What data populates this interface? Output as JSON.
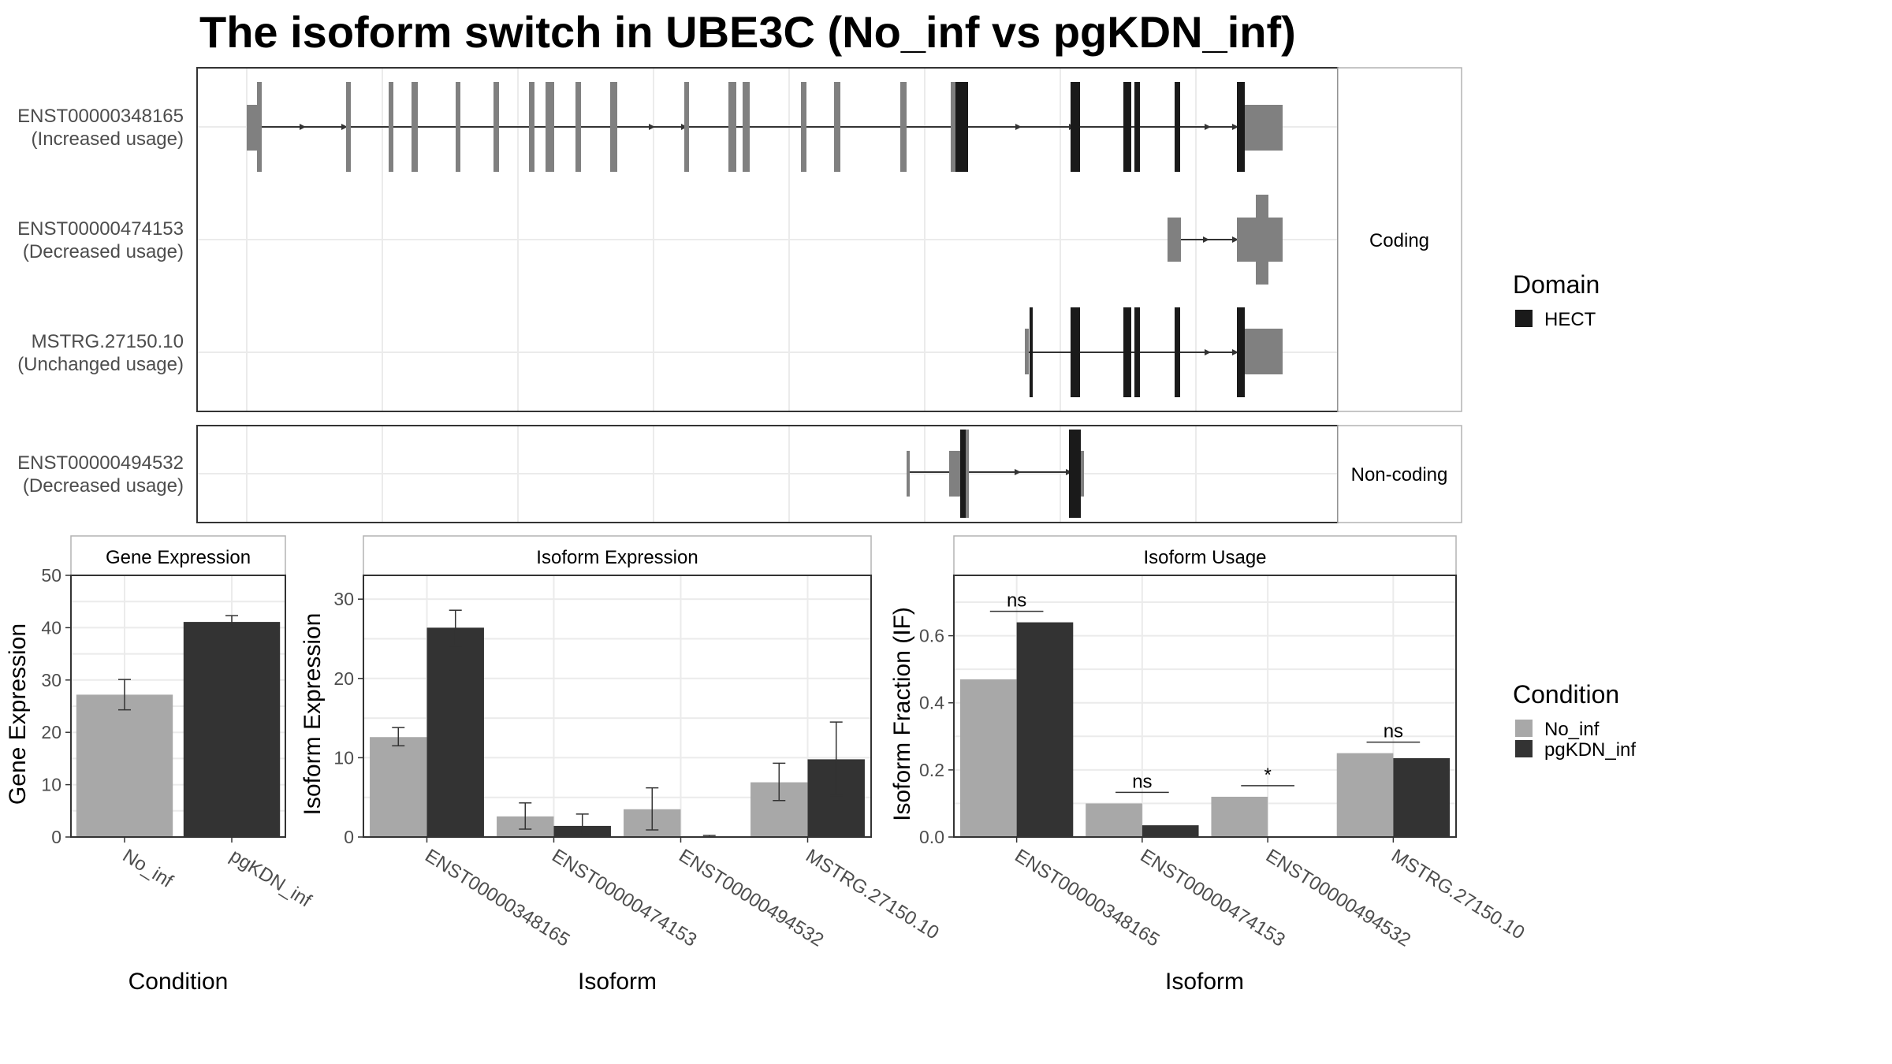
{
  "title": "The isoform switch in UBE3C (No_inf vs pgKDN_inf)",
  "colors": {
    "no_inf": "#a8a8a8",
    "pgkdn_inf": "#333333",
    "exon": "#808080",
    "domain": "#1a1a1a",
    "grid": "#ebebeb",
    "panel_border": "#333333",
    "strip_border": "#b3b3b3"
  },
  "transcript_plot": {
    "facets": [
      {
        "label": "Coding",
        "isoforms": [
          {
            "id": "ENST00000348165",
            "usage": "(Increased usage)"
          },
          {
            "id": "ENST00000474153",
            "usage": "(Decreased usage)"
          },
          {
            "id": "MSTRG.27150.10",
            "usage": "(Unchanged usage)"
          }
        ]
      },
      {
        "label": "Non-coding",
        "isoforms": [
          {
            "id": "ENST00000494532",
            "usage": "(Decreased usage)"
          }
        ]
      }
    ],
    "legend": {
      "title": "Domain",
      "items": [
        {
          "label": "HECT",
          "color": "#1a1a1a"
        }
      ]
    }
  },
  "chart_data": [
    {
      "type": "bar",
      "strip": "Gene Expression",
      "xlabel": "Condition",
      "ylabel": "Gene Expression",
      "ylim": [
        0,
        50
      ],
      "yticks": [
        0,
        10,
        20,
        30,
        40,
        50
      ],
      "categories": [
        "No_inf",
        "pgKDN_inf"
      ],
      "values": [
        27.2,
        41.1
      ],
      "errors": [
        [
          24.3,
          30.1
        ],
        [
          39.9,
          42.3
        ]
      ]
    },
    {
      "type": "bar",
      "strip": "Isoform Expression",
      "xlabel": "Isoform",
      "ylabel": "Isoform Expression",
      "ylim": [
        0,
        33
      ],
      "yticks": [
        0,
        10,
        20,
        30
      ],
      "categories": [
        "ENST00000348165",
        "ENST00000474153",
        "ENST00000494532",
        "MSTRG.27150.10"
      ],
      "series": [
        {
          "name": "No_inf",
          "values": [
            12.6,
            2.6,
            3.5,
            6.9
          ],
          "errors": [
            [
              11.5,
              13.8
            ],
            [
              1.0,
              4.3
            ],
            [
              0.9,
              6.2
            ],
            [
              4.6,
              9.3
            ]
          ]
        },
        {
          "name": "pgKDN_inf",
          "values": [
            26.4,
            1.4,
            0.1,
            9.8
          ],
          "errors": [
            [
              24.1,
              28.6
            ],
            [
              0.3,
              2.9
            ],
            [
              0.0,
              0.2
            ],
            [
              5.2,
              14.5
            ]
          ]
        }
      ]
    },
    {
      "type": "bar",
      "strip": "Isoform Usage",
      "xlabel": "Isoform",
      "ylabel": "Isoform Fraction (IF)",
      "ylim": [
        0,
        0.78
      ],
      "yticks": [
        0.0,
        0.2,
        0.4,
        0.6
      ],
      "ytick_labels": [
        "0.0",
        "0.2",
        "0.4",
        "0.6"
      ],
      "categories": [
        "ENST00000348165",
        "ENST00000474153",
        "ENST00000494532",
        "MSTRG.27150.10"
      ],
      "series": [
        {
          "name": "No_inf",
          "values": [
            0.47,
            0.1,
            0.12,
            0.25
          ]
        },
        {
          "name": "pgKDN_inf",
          "values": [
            0.64,
            0.035,
            0.0,
            0.235
          ]
        }
      ],
      "significance": [
        "ns",
        "ns",
        "*",
        "ns"
      ]
    }
  ],
  "condition_legend": {
    "title": "Condition",
    "items": [
      {
        "label": "No_inf",
        "color": "#a8a8a8"
      },
      {
        "label": "pgKDN_inf",
        "color": "#333333"
      }
    ]
  }
}
